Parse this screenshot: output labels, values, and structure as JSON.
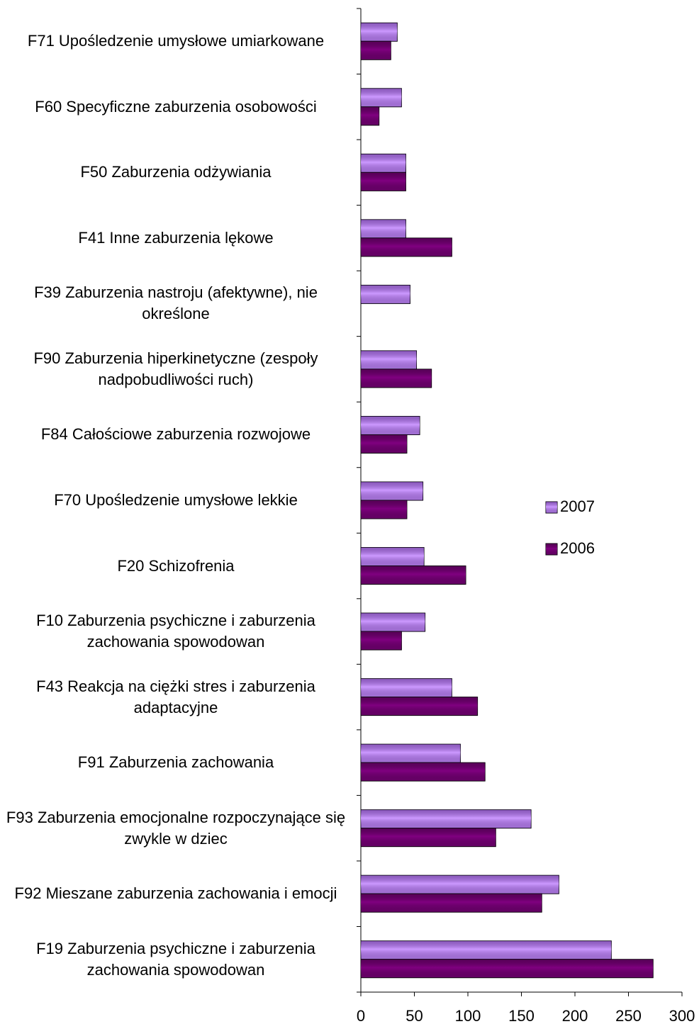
{
  "chart_data": {
    "type": "bar",
    "orientation": "horizontal",
    "categories": [
      "F71 Upośledzenie umysłowe umiarkowane",
      "F60 Specyficzne zaburzenia osobowości",
      "F50 Zaburzenia odżywiania",
      "F41 Inne zaburzenia lękowe",
      "F39 Zaburzenia nastroju (afektywne), nie określone",
      "F90 Zaburzenia hiperkinetyczne (zespoły nadpobudliwości ruch)",
      "F84 Całościowe zaburzenia rozwojowe",
      "F70 Upośledzenie umysłowe lekkie",
      "F20 Schizofrenia",
      "F10 Zaburzenia psychiczne i zaburzenia zachowania spowodowan",
      "F43 Reakcja na ciężki stres i zaburzenia adaptacyjne",
      "F91 Zaburzenia zachowania",
      "F93 Zaburzenia emocjonalne rozpoczynające się zwykle w dziec",
      "F92 Mieszane zaburzenia zachowania i emocji",
      "F19 Zaburzenia psychiczne i zaburzenia zachowania spowodowan"
    ],
    "series": [
      {
        "name": "2007",
        "color": "#cc99ff",
        "values": [
          34,
          38,
          42,
          42,
          46,
          52,
          55,
          58,
          59,
          60,
          85,
          93,
          159,
          185,
          234
        ]
      },
      {
        "name": "2006",
        "color": "#800080",
        "values": [
          28,
          17,
          42,
          85,
          null,
          66,
          43,
          43,
          98,
          38,
          109,
          116,
          126,
          169,
          273
        ]
      }
    ],
    "xlim": [
      0,
      300
    ],
    "xticks": [
      0,
      50,
      100,
      150,
      200,
      250,
      300
    ],
    "legend": "right"
  }
}
